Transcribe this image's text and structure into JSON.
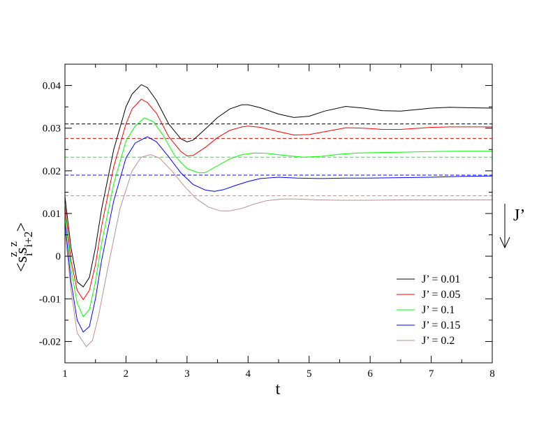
{
  "chart_data": {
    "type": "line",
    "xlabel": "t",
    "ylabel": {
      "open": "<",
      "s": "s",
      "sub_i": "i",
      "sup_z1": "z",
      "sub_i2": "i+2",
      "sup_z2": "z",
      "close": ">"
    },
    "xlim": [
      1,
      8
    ],
    "ylim": [
      -0.025,
      0.045
    ],
    "xticks": [
      1,
      2,
      3,
      4,
      5,
      6,
      7,
      8
    ],
    "xtick_labels": [
      "1",
      "2",
      "3",
      "4",
      "5",
      "6",
      "7",
      "8"
    ],
    "yticks": [
      -0.02,
      -0.01,
      0,
      0.01,
      0.02,
      0.03,
      0.04
    ],
    "ytick_labels": [
      "-0.02",
      "-0.01",
      "0",
      "0.01",
      "0.02",
      "0.03",
      "0.04"
    ],
    "grid": false,
    "legend_position": "bottom-right",
    "annotation": {
      "text": "J’",
      "arrow": "down"
    },
    "series": [
      {
        "name": "J’ = 0.01",
        "color": "#000000",
        "points": [
          [
            1.0,
            0.014
          ],
          [
            1.1,
            0.002
          ],
          [
            1.2,
            -0.006
          ],
          [
            1.3,
            -0.0072
          ],
          [
            1.4,
            -0.005
          ],
          [
            1.5,
            0.002
          ],
          [
            1.6,
            0.011
          ],
          [
            1.8,
            0.025
          ],
          [
            2.0,
            0.035
          ],
          [
            2.1,
            0.038
          ],
          [
            2.25,
            0.0402
          ],
          [
            2.35,
            0.0395
          ],
          [
            2.5,
            0.0365
          ],
          [
            2.7,
            0.031
          ],
          [
            2.9,
            0.0275
          ],
          [
            3.0,
            0.0268
          ],
          [
            3.1,
            0.0272
          ],
          [
            3.3,
            0.0298
          ],
          [
            3.5,
            0.0325
          ],
          [
            3.7,
            0.0345
          ],
          [
            3.9,
            0.0355
          ],
          [
            4.0,
            0.0355
          ],
          [
            4.2,
            0.0348
          ],
          [
            4.5,
            0.0333
          ],
          [
            4.75,
            0.0325
          ],
          [
            5.0,
            0.0328
          ],
          [
            5.25,
            0.034
          ],
          [
            5.6,
            0.0351
          ],
          [
            5.9,
            0.0347
          ],
          [
            6.2,
            0.0341
          ],
          [
            6.5,
            0.034
          ],
          [
            6.8,
            0.0344
          ],
          [
            7.0,
            0.0347
          ],
          [
            7.3,
            0.0349
          ],
          [
            7.6,
            0.0348
          ],
          [
            8.0,
            0.0347
          ]
        ],
        "reference": 0.031
      },
      {
        "name": "J’ = 0.05",
        "color": "#ff0000",
        "points": [
          [
            1.0,
            0.012
          ],
          [
            1.1,
            -0.001
          ],
          [
            1.2,
            -0.008
          ],
          [
            1.3,
            -0.0102
          ],
          [
            1.4,
            -0.008
          ],
          [
            1.5,
            -0.002
          ],
          [
            1.6,
            0.007
          ],
          [
            1.8,
            0.021
          ],
          [
            2.0,
            0.031
          ],
          [
            2.1,
            0.0345
          ],
          [
            2.25,
            0.0368
          ],
          [
            2.35,
            0.036
          ],
          [
            2.5,
            0.0335
          ],
          [
            2.7,
            0.028
          ],
          [
            2.9,
            0.0245
          ],
          [
            3.0,
            0.0235
          ],
          [
            3.1,
            0.0236
          ],
          [
            3.3,
            0.0255
          ],
          [
            3.5,
            0.0278
          ],
          [
            3.7,
            0.0295
          ],
          [
            3.9,
            0.0303
          ],
          [
            4.0,
            0.0305
          ],
          [
            4.2,
            0.0302
          ],
          [
            4.5,
            0.0292
          ],
          [
            4.75,
            0.0284
          ],
          [
            5.0,
            0.0285
          ],
          [
            5.3,
            0.0293
          ],
          [
            5.6,
            0.0301
          ],
          [
            5.9,
            0.03
          ],
          [
            6.2,
            0.0297
          ],
          [
            6.5,
            0.0297
          ],
          [
            6.8,
            0.03
          ],
          [
            7.0,
            0.0302
          ],
          [
            7.3,
            0.0303
          ],
          [
            7.6,
            0.0303
          ],
          [
            8.0,
            0.0303
          ]
        ],
        "reference": 0.0276
      },
      {
        "name": "J’ = 0.1",
        "color": "#00ff00",
        "points": [
          [
            1.0,
            0.01
          ],
          [
            1.1,
            -0.003
          ],
          [
            1.2,
            -0.011
          ],
          [
            1.3,
            -0.0142
          ],
          [
            1.4,
            -0.0125
          ],
          [
            1.5,
            -0.006
          ],
          [
            1.6,
            0.003
          ],
          [
            1.8,
            0.017
          ],
          [
            2.0,
            0.027
          ],
          [
            2.15,
            0.0305
          ],
          [
            2.3,
            0.0324
          ],
          [
            2.45,
            0.0315
          ],
          [
            2.6,
            0.0285
          ],
          [
            2.8,
            0.0235
          ],
          [
            3.0,
            0.0205
          ],
          [
            3.2,
            0.0195
          ],
          [
            3.3,
            0.0196
          ],
          [
            3.5,
            0.0212
          ],
          [
            3.7,
            0.0228
          ],
          [
            3.9,
            0.0238
          ],
          [
            4.1,
            0.0242
          ],
          [
            4.3,
            0.0241
          ],
          [
            4.6,
            0.0236
          ],
          [
            4.9,
            0.0232
          ],
          [
            5.2,
            0.0234
          ],
          [
            5.5,
            0.0239
          ],
          [
            5.8,
            0.0242
          ],
          [
            6.2,
            0.0243
          ],
          [
            6.6,
            0.0244
          ],
          [
            7.0,
            0.0245
          ],
          [
            7.5,
            0.0246
          ],
          [
            8.0,
            0.0246
          ]
        ],
        "reference": 0.0232
      },
      {
        "name": "J’ = 0.15",
        "color": "#0000ff",
        "points": [
          [
            1.0,
            0.008
          ],
          [
            1.1,
            -0.006
          ],
          [
            1.2,
            -0.015
          ],
          [
            1.3,
            -0.0178
          ],
          [
            1.4,
            -0.0165
          ],
          [
            1.5,
            -0.01
          ],
          [
            1.6,
            -0.001
          ],
          [
            1.8,
            0.013
          ],
          [
            2.0,
            0.023
          ],
          [
            2.15,
            0.0265
          ],
          [
            2.35,
            0.028
          ],
          [
            2.5,
            0.0268
          ],
          [
            2.7,
            0.0233
          ],
          [
            2.9,
            0.0195
          ],
          [
            3.1,
            0.0168
          ],
          [
            3.3,
            0.0155
          ],
          [
            3.45,
            0.0152
          ],
          [
            3.6,
            0.0156
          ],
          [
            3.8,
            0.0166
          ],
          [
            4.0,
            0.0175
          ],
          [
            4.2,
            0.0182
          ],
          [
            4.5,
            0.0185
          ],
          [
            4.8,
            0.0183
          ],
          [
            5.2,
            0.0182
          ],
          [
            5.6,
            0.0183
          ],
          [
            6.0,
            0.0183
          ],
          [
            6.5,
            0.0184
          ],
          [
            7.0,
            0.0185
          ],
          [
            7.5,
            0.0187
          ],
          [
            8.0,
            0.0188
          ]
        ],
        "reference": 0.019
      },
      {
        "name": "J’ = 0.2",
        "color": "#bc8f8f",
        "points": [
          [
            1.0,
            0.006
          ],
          [
            1.1,
            -0.008
          ],
          [
            1.2,
            -0.018
          ],
          [
            1.35,
            -0.0212
          ],
          [
            1.45,
            -0.0198
          ],
          [
            1.55,
            -0.014
          ],
          [
            1.7,
            -0.003
          ],
          [
            1.9,
            0.011
          ],
          [
            2.1,
            0.02
          ],
          [
            2.25,
            0.0232
          ],
          [
            2.4,
            0.0238
          ],
          [
            2.55,
            0.023
          ],
          [
            2.75,
            0.02
          ],
          [
            2.95,
            0.0165
          ],
          [
            3.15,
            0.0135
          ],
          [
            3.35,
            0.0115
          ],
          [
            3.55,
            0.0106
          ],
          [
            3.7,
            0.0106
          ],
          [
            3.9,
            0.0112
          ],
          [
            4.1,
            0.0122
          ],
          [
            4.3,
            0.013
          ],
          [
            4.55,
            0.0134
          ],
          [
            4.8,
            0.0134
          ],
          [
            5.1,
            0.0132
          ],
          [
            5.5,
            0.0131
          ],
          [
            6.0,
            0.0131
          ],
          [
            6.5,
            0.0132
          ],
          [
            7.0,
            0.0132
          ],
          [
            7.5,
            0.0132
          ],
          [
            8.0,
            0.0132
          ]
        ],
        "reference": 0.0142
      }
    ]
  }
}
